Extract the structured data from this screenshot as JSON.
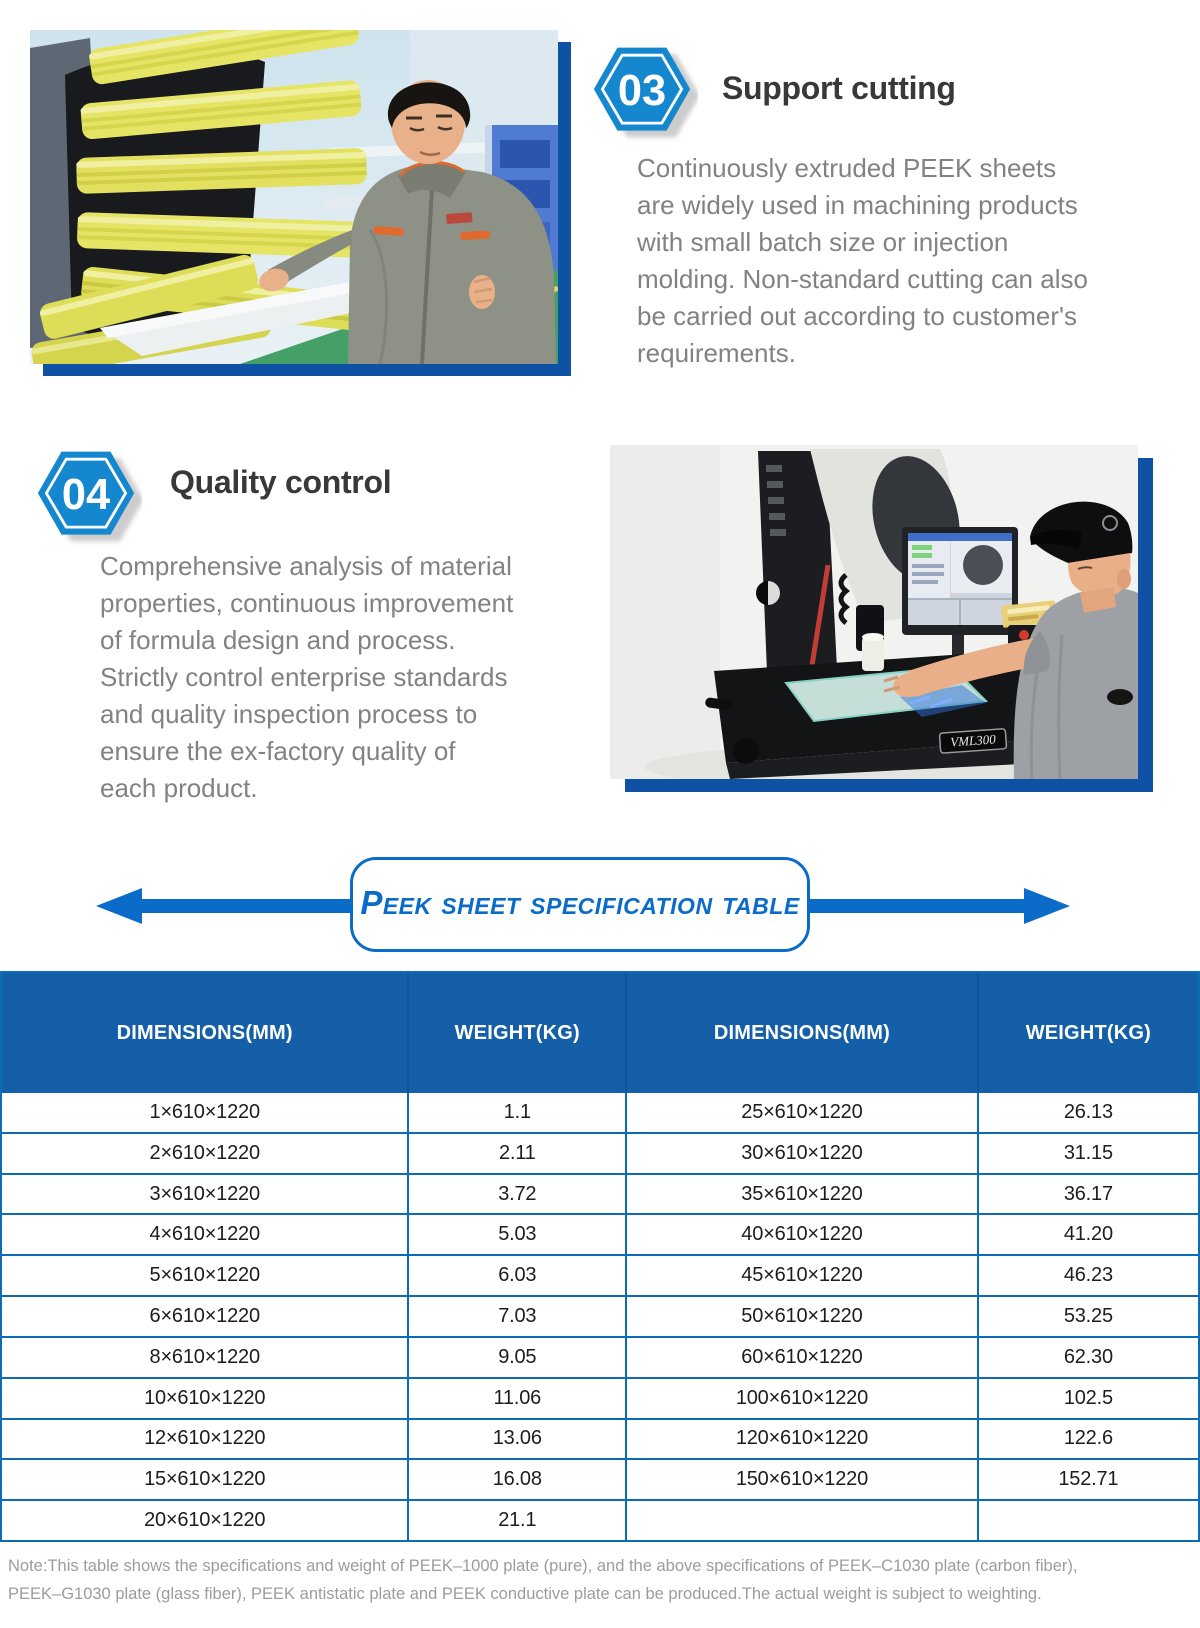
{
  "sections": [
    {
      "badge": "03",
      "title": "Support cutting",
      "body": "Continuously extruded PEEK sheets\nare widely used in machining products\nwith small batch size or injection\nmolding. Non-standard cutting can also\nbe carried out according to customer's\nrequirements."
    },
    {
      "badge": "04",
      "title": "Quality control",
      "body": "Comprehensive analysis of material\nproperties, continuous improvement\nof formula design and process.\nStrictly control enterprise standards\nand quality inspection process to\nensure the ex-factory quality of\neach product."
    }
  ],
  "banner": {
    "label": "Peek sheet specification table"
  },
  "photos": {
    "machine_label": "VML300"
  },
  "table": {
    "headers": [
      "DIMENSIONS(MM)",
      "WEIGHT(KG)",
      "DIMENSIONS(MM)",
      "WEIGHT(KG)"
    ],
    "rows": [
      [
        "1×610×1220",
        "1.1",
        "25×610×1220",
        "26.13"
      ],
      [
        "2×610×1220",
        "2.11",
        "30×610×1220",
        "31.15"
      ],
      [
        "3×610×1220",
        "3.72",
        "35×610×1220",
        "36.17"
      ],
      [
        "4×610×1220",
        "5.03",
        "40×610×1220",
        "41.20"
      ],
      [
        "5×610×1220",
        "6.03",
        "45×610×1220",
        "46.23"
      ],
      [
        "6×610×1220",
        "7.03",
        "50×610×1220",
        "53.25"
      ],
      [
        "8×610×1220",
        "9.05",
        "60×610×1220",
        "62.30"
      ],
      [
        "10×610×1220",
        "11.06",
        "100×610×1220",
        "102.5"
      ],
      [
        "12×610×1220",
        "13.06",
        "120×610×1220",
        "122.6"
      ],
      [
        "15×610×1220",
        "16.08",
        "150×610×1220",
        "152.71"
      ],
      [
        "20×610×1220",
        "21.1",
        "",
        ""
      ]
    ]
  },
  "note": "Note:This table shows the specifications and weight of PEEK–1000 plate (pure), and the above specifications of PEEK–C1030 plate (carbon fiber),\nPEEK–G1030 plate (glass fiber), PEEK antistatic plate and PEEK conductive plate can be produced.The actual weight is subject to weighting.",
  "colors": {
    "header_blue": "#145fa7",
    "table_border_blue": "#0e6cb4",
    "hexagon_blue": "#1487cf",
    "banner_blue": "#0a6bc9",
    "photo_frame_blue": "#0e51a5",
    "title_text": "#383838",
    "body_text": "#828282",
    "note_text": "#9c9c9c"
  }
}
